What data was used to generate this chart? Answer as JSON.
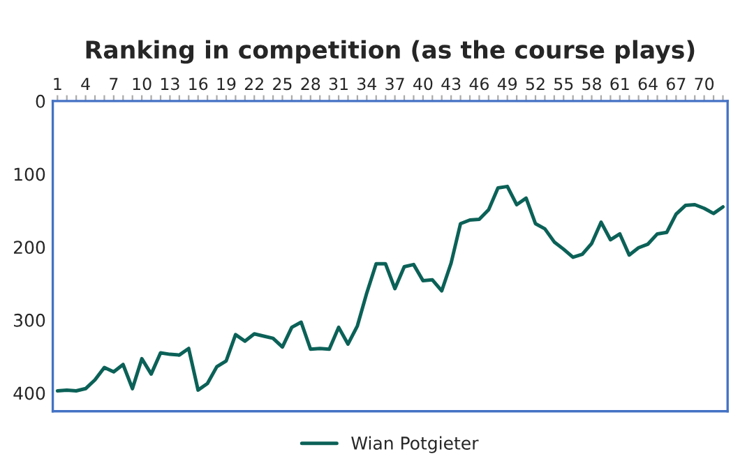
{
  "chart_data": {
    "type": "line",
    "title": "Ranking in competition (as the course plays)",
    "categories": [
      "1",
      null,
      null,
      "4",
      null,
      null,
      "7",
      null,
      null,
      "10",
      null,
      null,
      "13",
      null,
      null,
      "16",
      null,
      null,
      "19",
      null,
      null,
      "22",
      null,
      null,
      "25",
      null,
      null,
      "28",
      null,
      null,
      "31",
      null,
      null,
      "34",
      null,
      null,
      "37",
      null,
      null,
      "40",
      null,
      null,
      "43",
      null,
      null,
      "46",
      null,
      null,
      "49",
      null,
      null,
      "52",
      null,
      null,
      "55",
      null,
      null,
      "58",
      null,
      null,
      "61",
      null,
      null,
      "64",
      null,
      null,
      "67",
      null,
      null,
      "70",
      null,
      null
    ],
    "series": [
      {
        "name": "Wian Potgieter",
        "color": "#0b6157",
        "values": [
          397,
          396,
          397,
          394,
          382,
          365,
          371,
          361,
          394,
          353,
          374,
          345,
          347,
          348,
          339,
          396,
          387,
          364,
          356,
          320,
          329,
          319,
          322,
          325,
          337,
          310,
          303,
          340,
          339,
          340,
          310,
          333,
          308,
          263,
          223,
          223,
          257,
          227,
          224,
          246,
          245,
          260,
          222,
          168,
          163,
          162,
          149,
          119,
          117,
          142,
          133,
          168,
          175,
          193,
          203,
          214,
          210,
          195,
          166,
          190,
          182,
          211,
          201,
          196,
          182,
          180,
          155,
          143,
          142,
          147,
          154,
          145
        ]
      }
    ],
    "ylim": [
      425,
      0
    ],
    "yticks": [
      0,
      100,
      200,
      300,
      400
    ],
    "grid": false,
    "legend": "bottom",
    "line_style": "solid",
    "marker": "none"
  }
}
